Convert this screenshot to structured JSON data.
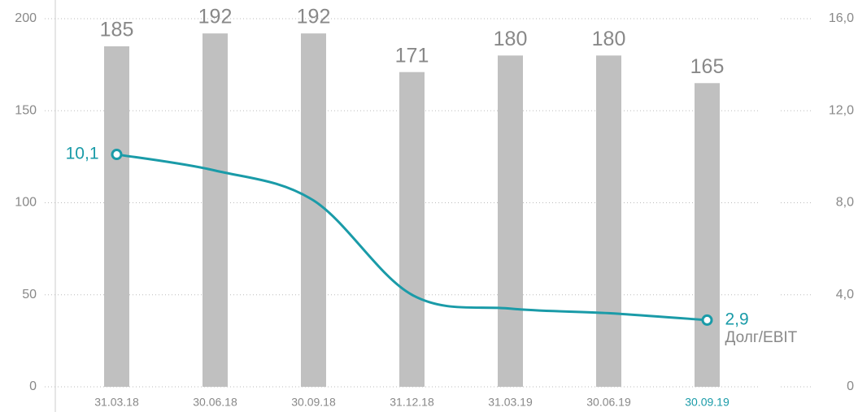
{
  "chart_data": {
    "type": "bar-line",
    "categories": [
      "31.03.18",
      "30.06.18",
      "30.09.18",
      "31.12.18",
      "31.03.19",
      "30.06.19",
      "30.09.19"
    ],
    "highlight_index": 6,
    "values": [
      185,
      192,
      192,
      171,
      180,
      180,
      165
    ],
    "color": "#c0c0c0",
    "ylim": [
      0,
      200
    ],
    "yticks": [
      0,
      50,
      100,
      150,
      200
    ],
    "y2lim": [
      0,
      16
    ],
    "y2ticks": [
      0,
      {
        "value": 4,
        "label": "4,0"
      },
      {
        "value": 8,
        "label": "8,0"
      },
      {
        "value": 12,
        "label": "12,0"
      },
      {
        "value": 16,
        "label": "16,0"
      }
    ],
    "grid": true,
    "series": [
      {
        "name": "Долг/EBIT",
        "color": "#1a9ba8",
        "axis": "y2",
        "values": [
          10.1,
          9.4,
          8.1,
          4.0,
          3.4,
          3.2,
          2.9
        ],
        "value_labels": [
          "10,1",
          null,
          null,
          null,
          null,
          null,
          "2,9"
        ]
      }
    ]
  }
}
